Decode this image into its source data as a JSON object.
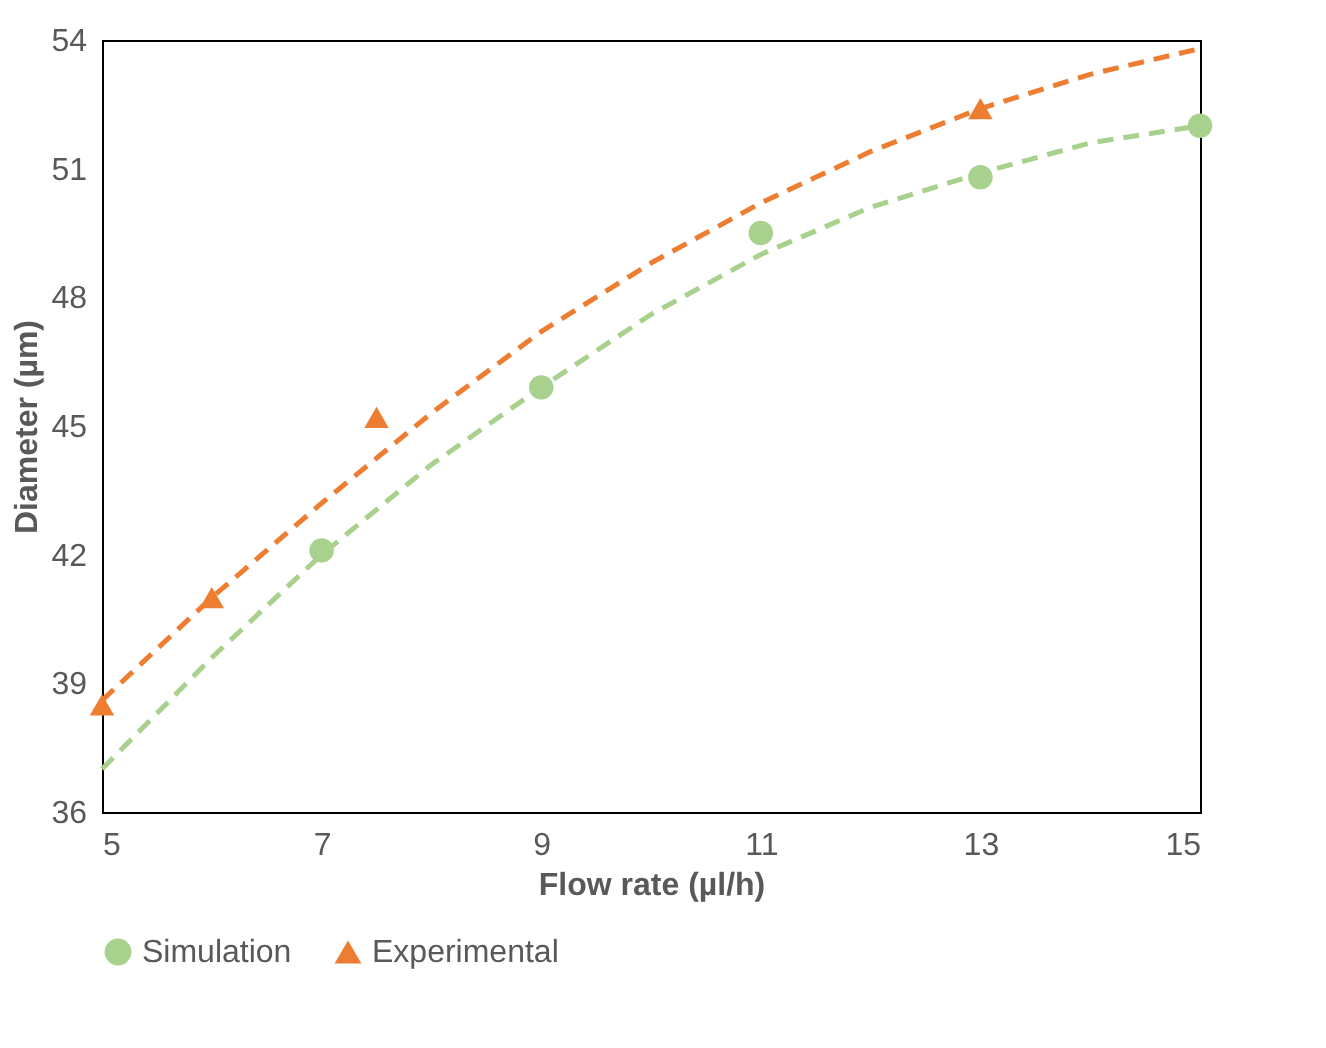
{
  "chart_data": {
    "type": "scatter",
    "xlabel": "Flow rate (µl/h)",
    "ylabel": "Diameter (µm)",
    "xlim": [
      5,
      15
    ],
    "xticks": [
      5,
      7,
      9,
      11,
      13,
      15
    ],
    "ylim": [
      36,
      54
    ],
    "yticks": [
      36,
      39,
      42,
      45,
      48,
      51,
      54
    ],
    "grid": false,
    "legend": "bottom",
    "series": [
      {
        "name": "Simulation",
        "marker": "circle",
        "color": "#a9d18e",
        "x": [
          7,
          9,
          11,
          13,
          15
        ],
        "values": [
          42.1,
          45.9,
          49.5,
          50.8,
          52.0
        ]
      },
      {
        "name": "Experimental",
        "marker": "triangle",
        "color": "#ed7d31",
        "x": [
          5,
          6,
          7.5,
          13
        ],
        "values": [
          38.5,
          41.0,
          45.2,
          52.4
        ]
      },
      {
        "type": "line",
        "line_style": "dashed",
        "color": "#a9d18e",
        "x": [
          5,
          6,
          7,
          8,
          9,
          10,
          11,
          12,
          13,
          14,
          15
        ],
        "values": [
          37.0,
          39.6,
          42.0,
          44.1,
          45.9,
          47.6,
          49.0,
          50.1,
          50.9,
          51.6,
          52.0
        ]
      },
      {
        "type": "line",
        "line_style": "dashed",
        "color": "#ed7d31",
        "x": [
          5,
          6,
          7,
          8,
          9,
          10,
          11,
          12,
          13,
          14,
          15
        ],
        "values": [
          38.6,
          41.0,
          43.2,
          45.3,
          47.2,
          48.8,
          50.2,
          51.4,
          52.4,
          53.2,
          53.8
        ]
      }
    ]
  }
}
